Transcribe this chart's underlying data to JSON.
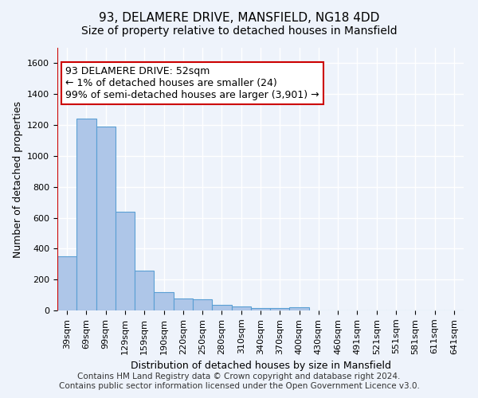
{
  "title": "93, DELAMERE DRIVE, MANSFIELD, NG18 4DD",
  "subtitle": "Size of property relative to detached houses in Mansfield",
  "xlabel": "Distribution of detached houses by size in Mansfield",
  "ylabel": "Number of detached properties",
  "categories": [
    "39sqm",
    "69sqm",
    "99sqm",
    "129sqm",
    "159sqm",
    "190sqm",
    "220sqm",
    "250sqm",
    "280sqm",
    "310sqm",
    "340sqm",
    "370sqm",
    "400sqm",
    "430sqm",
    "460sqm",
    "491sqm",
    "521sqm",
    "551sqm",
    "581sqm",
    "611sqm",
    "641sqm"
  ],
  "values": [
    350,
    1240,
    1190,
    640,
    260,
    120,
    75,
    70,
    35,
    25,
    15,
    15,
    20,
    0,
    0,
    0,
    0,
    0,
    0,
    0,
    0
  ],
  "bar_color": "#aec6e8",
  "bar_edgecolor": "#5a9fd4",
  "ylim": [
    0,
    1700
  ],
  "yticks": [
    0,
    200,
    400,
    600,
    800,
    1000,
    1200,
    1400,
    1600
  ],
  "vline_color": "#cc0000",
  "annotation_text": "93 DELAMERE DRIVE: 52sqm\n← 1% of detached houses are smaller (24)\n99% of semi-detached houses are larger (3,901) →",
  "annotation_box_color": "#ffffff",
  "annotation_box_edgecolor": "#cc0000",
  "footer_text": "Contains HM Land Registry data © Crown copyright and database right 2024.\nContains public sector information licensed under the Open Government Licence v3.0.",
  "bg_color": "#eef3fb",
  "grid_color": "#ffffff",
  "title_fontsize": 11,
  "subtitle_fontsize": 10,
  "axis_label_fontsize": 9,
  "tick_fontsize": 8,
  "annotation_fontsize": 9,
  "footer_fontsize": 7.5
}
